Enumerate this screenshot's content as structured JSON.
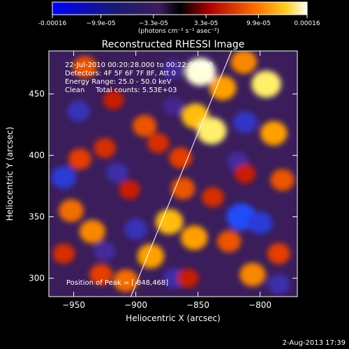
{
  "chart_data": {
    "type": "heatmap",
    "title": "Reconstructed RHESSI Image",
    "colorbar": {
      "tick_labels": [
        "-0.00016",
        "−9.9e-05",
        "−3.3e-05",
        "3.3e-05",
        "9.9e-05",
        "0.00016"
      ],
      "tick_values": [
        -0.00016,
        -9.9e-05,
        -3.3e-05,
        3.3e-05,
        9.9e-05,
        0.00016
      ],
      "range": [
        -0.00016,
        0.00016
      ],
      "unit_label": "(photons cm⁻² s⁻¹ asec⁻²)"
    },
    "xlabel": "Heliocentric X (arcsec)",
    "ylabel": "Heliocentric Y (arcsec)",
    "xlim": [
      -970,
      -770
    ],
    "ylim": [
      285,
      485
    ],
    "x_ticks": [
      -950,
      -900,
      -850,
      -800
    ],
    "y_ticks": [
      300,
      350,
      400,
      450
    ],
    "annotations": [
      "22-Jul-2010 00:20:28.000 to 00:22:00.000",
      "Detectors: 4F 5F 6F 7F 8F, Att 0",
      "Energy Range: 25.0 - 50.0 keV",
      "Clean     Total counts: 5.53E+03"
    ],
    "peak_label": "Position of Peak = [-848,468]",
    "peak": [
      -848,
      468
    ],
    "limb_line": [
      [
        -904,
        285
      ],
      [
        -823,
        485
      ]
    ],
    "blobs": [
      {
        "x": -893,
        "y": 424,
        "v": 9e-05
      },
      {
        "x": -882,
        "y": 410,
        "v": 7e-05
      },
      {
        "x": -864,
        "y": 398,
        "v": 8e-05
      },
      {
        "x": -852,
        "y": 432,
        "v": 0.00013
      },
      {
        "x": -839,
        "y": 420,
        "v": 0.00015
      },
      {
        "x": -830,
        "y": 455,
        "v": 0.00012
      },
      {
        "x": -848,
        "y": 468,
        "v": 0.00016
      },
      {
        "x": -813,
        "y": 476,
        "v": 0.00011
      },
      {
        "x": -795,
        "y": 458,
        "v": 0.00015
      },
      {
        "x": -789,
        "y": 418,
        "v": 0.00012
      },
      {
        "x": -782,
        "y": 380,
        "v": 9e-05
      },
      {
        "x": -941,
        "y": 472,
        "v": 9e-05
      },
      {
        "x": -918,
        "y": 445,
        "v": 6e-05
      },
      {
        "x": -925,
        "y": 406,
        "v": 7e-05
      },
      {
        "x": -945,
        "y": 397,
        "v": 8e-05
      },
      {
        "x": -952,
        "y": 355,
        "v": 0.0001
      },
      {
        "x": -935,
        "y": 338,
        "v": 0.00011
      },
      {
        "x": -958,
        "y": 320,
        "v": 7e-05
      },
      {
        "x": -928,
        "y": 303,
        "v": 8e-05
      },
      {
        "x": -908,
        "y": 298,
        "v": 0.0001
      },
      {
        "x": -888,
        "y": 318,
        "v": 0.00012
      },
      {
        "x": -873,
        "y": 346,
        "v": 0.00013
      },
      {
        "x": -853,
        "y": 333,
        "v": 0.00012
      },
      {
        "x": -862,
        "y": 373,
        "v": 9e-05
      },
      {
        "x": -838,
        "y": 366,
        "v": 7e-05
      },
      {
        "x": -812,
        "y": 385,
        "v": 6e-05
      },
      {
        "x": -825,
        "y": 330,
        "v": 9e-05
      },
      {
        "x": -806,
        "y": 303,
        "v": 0.00011
      },
      {
        "x": -785,
        "y": 320,
        "v": 8e-05
      },
      {
        "x": -858,
        "y": 300,
        "v": 6e-05
      },
      {
        "x": -905,
        "y": 372,
        "v": 6e-05
      },
      {
        "x": -946,
        "y": 436,
        "v": -8e-05
      },
      {
        "x": -958,
        "y": 382,
        "v": -0.0001
      },
      {
        "x": -915,
        "y": 386,
        "v": -7e-05
      },
      {
        "x": -900,
        "y": 340,
        "v": -8e-05
      },
      {
        "x": -925,
        "y": 322,
        "v": -6e-05
      },
      {
        "x": -869,
        "y": 300,
        "v": -7e-05
      },
      {
        "x": -815,
        "y": 350,
        "v": -0.00015
      },
      {
        "x": -800,
        "y": 345,
        "v": -0.0001
      },
      {
        "x": -812,
        "y": 427,
        "v": -9e-05
      },
      {
        "x": -818,
        "y": 395,
        "v": -6e-05
      },
      {
        "x": -785,
        "y": 295,
        "v": -7e-05
      },
      {
        "x": -870,
        "y": 470,
        "v": -6e-05
      },
      {
        "x": -870,
        "y": 440,
        "v": -5e-05
      }
    ]
  },
  "footer_date": "2-Aug-2013 17:39"
}
